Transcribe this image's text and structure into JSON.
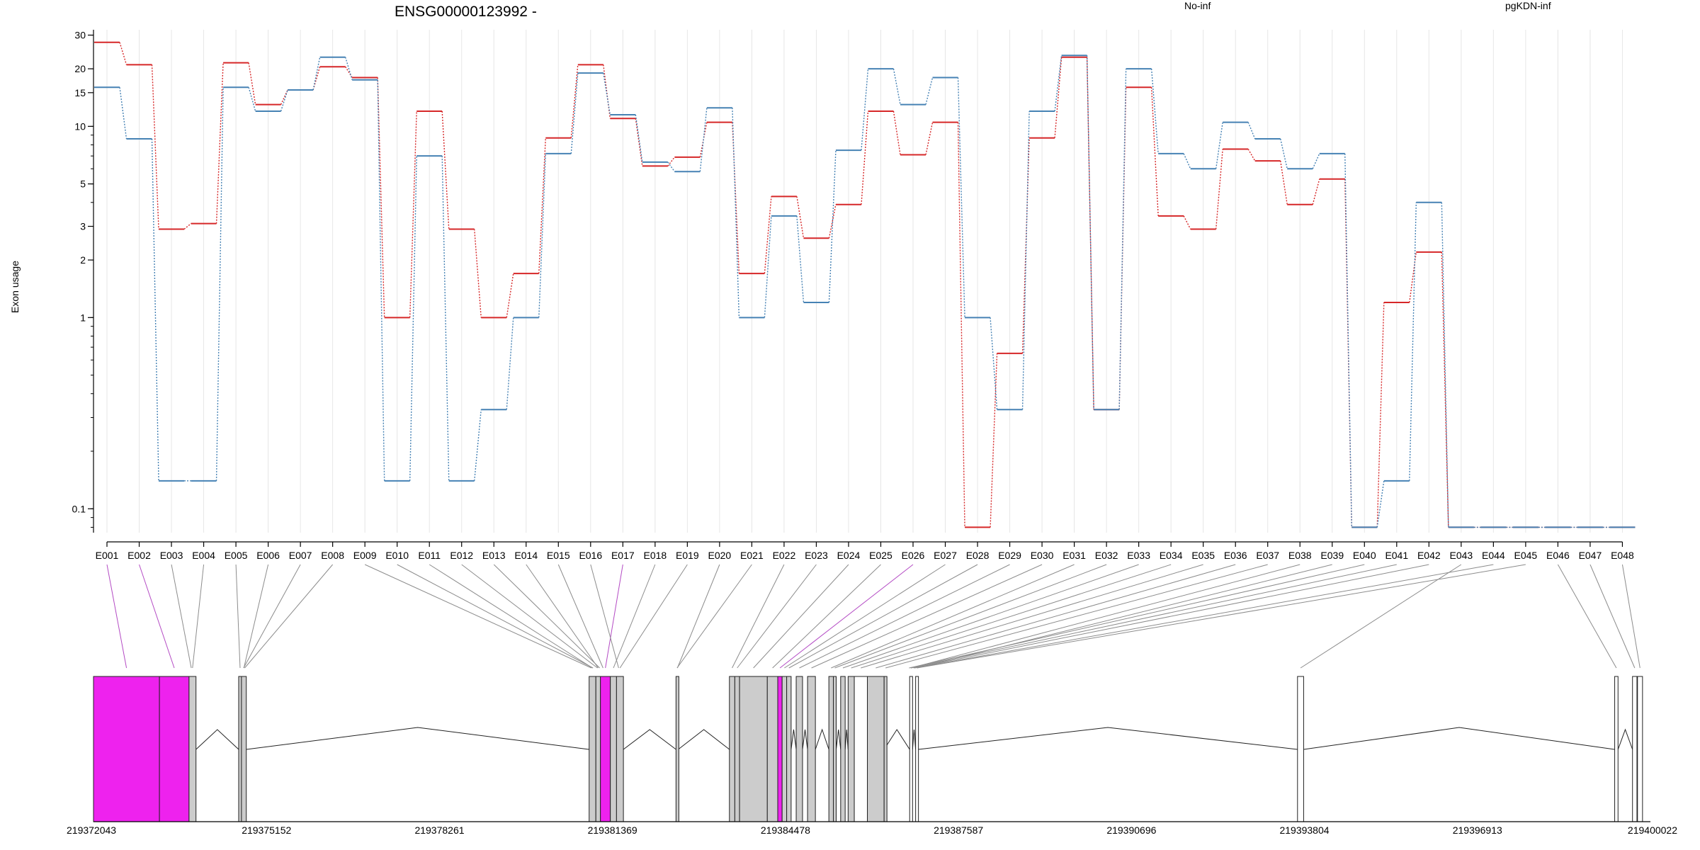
{
  "chart_data": {
    "type": "line",
    "title": "ENSG00000123992 -",
    "ylabel": "Exon usage",
    "y_scale": "log",
    "ylim": [
      0.075,
      32
    ],
    "y_ticks": [
      0.1,
      1,
      2,
      3,
      5,
      10,
      15,
      20,
      30
    ],
    "grid": "vertical, light",
    "legend_placement": "top",
    "categories": [
      "E001",
      "E002",
      "E003",
      "E004",
      "E005",
      "E006",
      "E007",
      "E008",
      "E009",
      "E010",
      "E011",
      "E012",
      "E013",
      "E014",
      "E015",
      "E016",
      "E017",
      "E018",
      "E019",
      "E020",
      "E021",
      "E022",
      "E023",
      "E024",
      "E025",
      "E026",
      "E027",
      "E028",
      "E029",
      "E030",
      "E031",
      "E032",
      "E033",
      "E034",
      "E035",
      "E036",
      "E037",
      "E038",
      "E039",
      "E040",
      "E041",
      "E042",
      "E043",
      "E044",
      "E045",
      "E046",
      "E047",
      "E048"
    ],
    "series": [
      {
        "name": "No-inf",
        "color": "#d62728",
        "values": [
          27.5,
          21,
          2.9,
          3.1,
          21.5,
          13,
          15.5,
          20.5,
          18,
          1,
          12,
          2.9,
          1,
          1.7,
          8.7,
          21,
          11,
          6.2,
          6.9,
          10.5,
          1.7,
          4.3,
          2.6,
          3.9,
          12,
          7.1,
          10.5,
          0.08,
          0.65,
          8.7,
          23,
          0.33,
          16,
          3.4,
          2.9,
          7.6,
          6.6,
          3.9,
          5.3,
          0.08,
          1.2,
          2.2,
          0.08,
          0.08,
          0.08,
          0.08,
          0.08,
          0.08
        ]
      },
      {
        "name": "pgKDN-inf",
        "color": "#4682b4",
        "values": [
          16,
          8.6,
          0.14,
          0.14,
          16,
          12,
          15.5,
          23,
          17.5,
          0.14,
          7,
          0.14,
          0.33,
          1,
          7.2,
          19,
          11.5,
          6.5,
          5.8,
          12.5,
          1,
          3.4,
          1.2,
          7.5,
          20,
          13,
          18,
          1,
          0.33,
          12,
          23.5,
          0.33,
          20,
          7.2,
          6,
          10.5,
          8.6,
          6,
          7.2,
          0.08,
          0.14,
          4,
          0.08,
          0.08,
          0.08,
          0.08,
          0.08,
          0.08
        ]
      }
    ],
    "exon_map": {
      "coordinate_ticks": [
        "219372043",
        "219375152",
        "219378261",
        "219381369",
        "219384478",
        "219387587",
        "219390696",
        "219393804",
        "219396913",
        "219400022"
      ],
      "highlight_color": "#ee22ee",
      "exon_fill": "#cccccc"
    }
  }
}
